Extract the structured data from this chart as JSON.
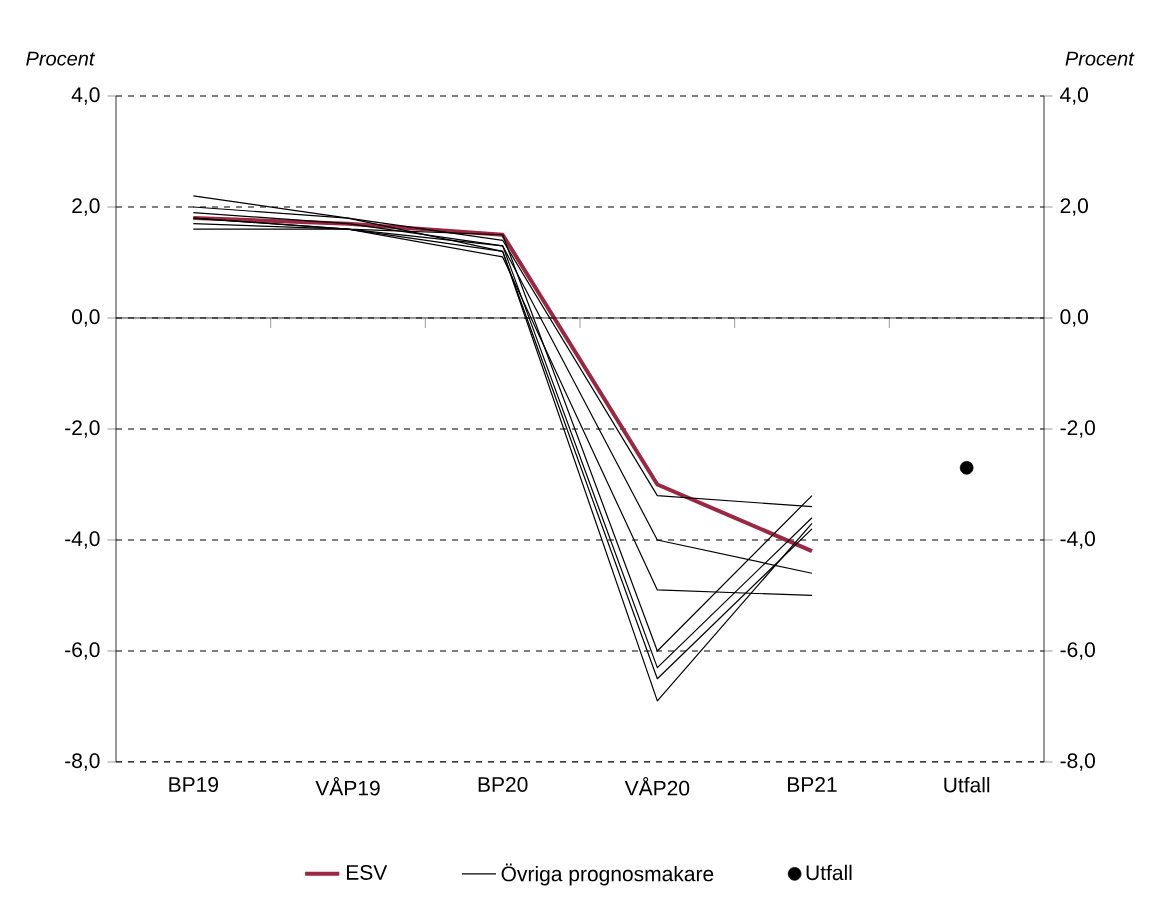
{
  "chart_data": {
    "type": "line",
    "categories": [
      "BP19",
      "VÅP19",
      "BP20",
      "VÅP20",
      "BP21",
      "Utfall"
    ],
    "ylabel": "*Procent*",
    "y2label": "*Procent*",
    "ylim": [
      -8,
      4
    ],
    "y2lim": [
      -8,
      4
    ],
    "yticks": [
      {
        "value": -8,
        "label": "-8,0"
      },
      {
        "value": -6,
        "label": "-6,0"
      },
      {
        "value": -4,
        "label": "-4,0"
      },
      {
        "value": -2,
        "label": "-2,0"
      },
      {
        "value": 0,
        "label": "0,0"
      },
      {
        "value": 2,
        "label": "2,0"
      },
      {
        "value": 4,
        "label": "4,0"
      }
    ],
    "y2ticks": [
      {
        "value": -8,
        "label": "-8,0"
      },
      {
        "value": -6,
        "label": "-6,0"
      },
      {
        "value": -4,
        "label": "-4,0"
      },
      {
        "value": -2,
        "label": "-2,0"
      },
      {
        "value": 0,
        "label": "0,0"
      },
      {
        "value": 2,
        "label": "2,0"
      },
      {
        "value": 4,
        "label": "4,0"
      }
    ],
    "grid": "y",
    "legend": "bottom",
    "marker": "none",
    "line_style": "solid",
    "series": [
      {
        "name": "ESV",
        "color": "#9b2743",
        "values": [
          1.8,
          1.7,
          1.5,
          -3.0,
          -4.2,
          null
        ]
      },
      {
        "name": "Övriga prognosmakare",
        "color": "#000000",
        "values": [
          2.2,
          1.8,
          1.2,
          -6.9,
          -3.7,
          null
        ]
      },
      {
        "color": "#000000",
        "values": [
          2.0,
          1.8,
          1.4,
          -3.2,
          -3.4,
          null
        ]
      },
      {
        "color": "#000000",
        "values": [
          1.9,
          1.7,
          1.3,
          -4.0,
          -4.6,
          null
        ]
      },
      {
        "color": "#000000",
        "values": [
          1.8,
          1.6,
          1.1,
          -4.9,
          -5.0,
          null
        ]
      },
      {
        "color": "#000000",
        "values": [
          1.8,
          1.6,
          1.5,
          -6.0,
          -3.2,
          null
        ]
      },
      {
        "color": "#000000",
        "values": [
          1.6,
          1.6,
          1.3,
          -6.3,
          -3.6,
          null
        ]
      },
      {
        "color": "#000000",
        "values": [
          1.7,
          1.6,
          1.2,
          -6.5,
          -3.8,
          null
        ]
      },
      {
        "name": "Utfall",
        "type": "scatter",
        "marker": "circle",
        "color": "#000000",
        "values": [
          null,
          null,
          null,
          null,
          null,
          -2.7
        ]
      }
    ]
  }
}
